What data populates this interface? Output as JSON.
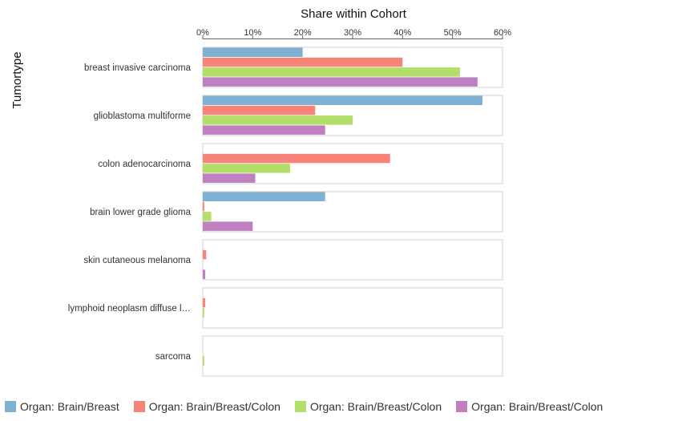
{
  "chart_data": {
    "type": "bar",
    "orientation": "horizontal",
    "title": "Share within Cohort",
    "ylabel": "Tumortype",
    "xlim": [
      0,
      60
    ],
    "x_ticks": [
      "0%",
      "10%",
      "20%",
      "30%",
      "40%",
      "50%",
      "60%"
    ],
    "categories": [
      "breast invasive carcinoma",
      "glioblastoma multiforme",
      "colon adenocarcinoma",
      "brain lower grade glioma",
      "skin cutaneous melanoma",
      "lymphoid neoplasm diffuse l…",
      "sarcoma"
    ],
    "series": [
      {
        "name": "Organ: Brain/Breast",
        "color": "#7fb1d3",
        "values": [
          20,
          56,
          0,
          24.5,
          0,
          0,
          0
        ]
      },
      {
        "name": "Organ: Brain/Breast/Colon",
        "color": "#f88379",
        "values": [
          40,
          22.5,
          37.5,
          0.3,
          0.7,
          0.5,
          0
        ]
      },
      {
        "name": "Organ: Brain/Breast/Colon",
        "color": "#b3de69",
        "values": [
          51.5,
          30,
          17.5,
          1.7,
          0,
          0.3,
          0.3
        ]
      },
      {
        "name": "Organ: Brain/Breast/Colon",
        "color": "#bf80bf",
        "values": [
          55,
          24.5,
          10.5,
          10,
          0.5,
          0,
          0
        ]
      }
    ],
    "legend_position": "bottom",
    "grid": false
  }
}
